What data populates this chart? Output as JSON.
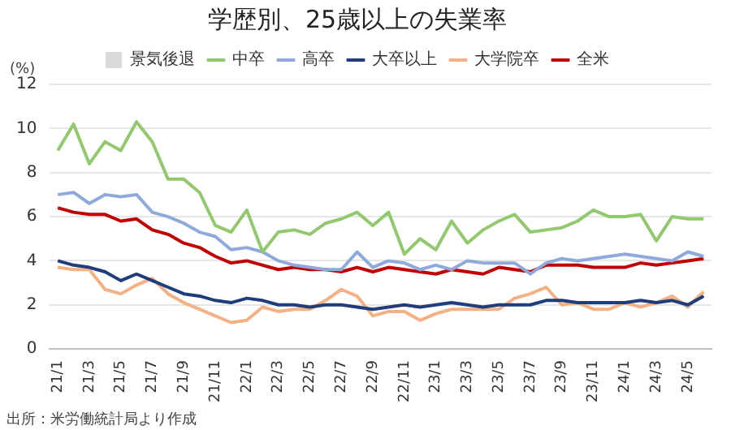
{
  "chart_data": {
    "type": "line",
    "title": "学歴別、25歳以上の失業率",
    "ylabel": "(%)",
    "annotations": [
      "出所：米労働統計局より作成"
    ],
    "categories": [
      "21/1",
      null,
      "21/3",
      null,
      "21/5",
      null,
      "21/7",
      null,
      "21/9",
      null,
      "21/11",
      null,
      "22/1",
      null,
      "22/3",
      null,
      "22/5",
      null,
      "22/7",
      null,
      "22/9",
      null,
      "22/11",
      null,
      "23/1",
      null,
      "23/3",
      null,
      "23/5",
      null,
      "23/7",
      null,
      "23/9",
      null,
      "23/11",
      null,
      "24/1",
      null,
      "24/3",
      null,
      "24/5",
      null
    ],
    "series": [
      {
        "name": "景気後退",
        "type": "bar",
        "color": "#d9d9d9",
        "values": [
          null,
          null,
          null,
          null,
          null,
          null,
          null,
          null,
          null,
          null,
          null,
          null,
          null,
          null,
          null,
          null,
          null,
          null,
          null,
          null,
          null,
          null,
          null,
          null,
          null,
          null,
          null,
          null,
          null,
          null,
          null,
          null,
          null,
          null,
          null,
          null,
          null,
          null,
          null,
          null,
          null,
          null
        ]
      },
      {
        "name": "中卒",
        "color": "#92c86e",
        "values": [
          9.0,
          10.2,
          8.4,
          9.4,
          9.0,
          10.3,
          9.4,
          7.7,
          7.7,
          7.1,
          5.6,
          5.3,
          6.3,
          4.4,
          5.3,
          5.4,
          5.2,
          5.7,
          5.9,
          6.2,
          5.6,
          6.2,
          4.3,
          5.0,
          4.5,
          5.8,
          4.8,
          5.4,
          5.8,
          6.1,
          5.3,
          5.4,
          5.5,
          5.8,
          6.3,
          6.0,
          6.0,
          6.1,
          4.9,
          6.0,
          5.9,
          5.9
        ]
      },
      {
        "name": "高卒",
        "color": "#8eaadb",
        "values": [
          7.0,
          7.1,
          6.6,
          7.0,
          6.9,
          7.0,
          6.2,
          6.0,
          5.7,
          5.3,
          5.1,
          4.5,
          4.6,
          4.4,
          4.0,
          3.8,
          3.7,
          3.6,
          3.6,
          4.4,
          3.7,
          4.0,
          3.9,
          3.6,
          3.8,
          3.6,
          4.0,
          3.9,
          3.9,
          3.9,
          3.4,
          3.9,
          4.1,
          4.0,
          4.1,
          4.2,
          4.3,
          4.2,
          4.1,
          4.0,
          4.4,
          4.2
        ]
      },
      {
        "name": "大卒以上",
        "color": "#1f3d7a",
        "values": [
          4.0,
          3.8,
          3.7,
          3.5,
          3.1,
          3.4,
          3.1,
          2.8,
          2.5,
          2.4,
          2.2,
          2.1,
          2.3,
          2.2,
          2.0,
          2.0,
          1.9,
          2.0,
          2.0,
          1.9,
          1.8,
          1.9,
          2.0,
          1.9,
          2.0,
          2.1,
          2.0,
          1.9,
          2.0,
          2.0,
          2.0,
          2.2,
          2.2,
          2.1,
          2.1,
          2.1,
          2.1,
          2.2,
          2.1,
          2.2,
          2.0,
          2.4
        ]
      },
      {
        "name": "大学院卒",
        "color": "#f4b183",
        "values": [
          3.7,
          3.6,
          3.6,
          2.7,
          2.5,
          2.9,
          3.2,
          2.5,
          2.1,
          1.8,
          1.5,
          1.2,
          1.3,
          1.9,
          1.7,
          1.8,
          1.8,
          2.2,
          2.7,
          2.4,
          1.5,
          1.7,
          1.7,
          1.3,
          1.6,
          1.8,
          1.8,
          1.8,
          1.8,
          2.3,
          2.5,
          2.8,
          2.0,
          2.1,
          1.8,
          1.8,
          2.1,
          1.9,
          2.1,
          2.4,
          1.9,
          2.6
        ]
      },
      {
        "name": "全米",
        "color": "#c00000",
        "values": [
          6.4,
          6.2,
          6.1,
          6.1,
          5.8,
          5.9,
          5.4,
          5.2,
          4.8,
          4.6,
          4.2,
          3.9,
          4.0,
          3.8,
          3.6,
          3.7,
          3.6,
          3.6,
          3.5,
          3.7,
          3.5,
          3.7,
          3.6,
          3.5,
          3.4,
          3.6,
          3.5,
          3.4,
          3.7,
          3.6,
          3.5,
          3.8,
          3.8,
          3.8,
          3.7,
          3.7,
          3.7,
          3.9,
          3.8,
          3.9,
          4.0,
          4.1
        ]
      }
    ],
    "ylim": [
      0,
      12
    ],
    "yticks": [
      0,
      2,
      4,
      6,
      8,
      10,
      12
    ],
    "grid": "y",
    "legend": "top",
    "marker": "none",
    "line_style": "solid"
  }
}
